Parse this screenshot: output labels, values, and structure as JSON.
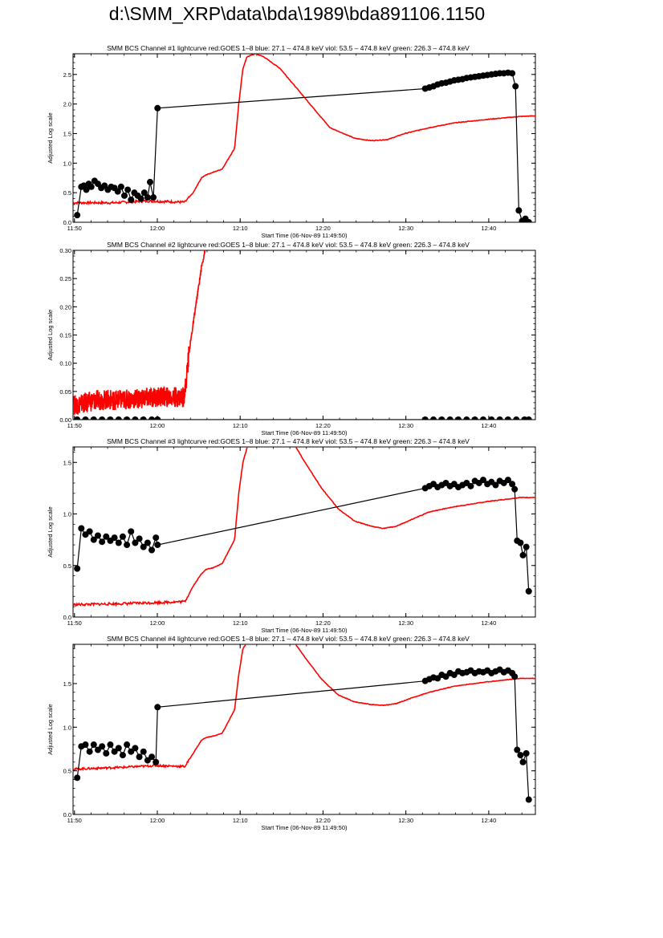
{
  "page": {
    "title": "d:\\SMM_XRP\\data\\bda\\1989\\bda891106.1150"
  },
  "colors": {
    "goes": "#ff0000",
    "bcs": "#000000",
    "axis": "#000000"
  },
  "chart_data": [
    {
      "type": "line",
      "title": "SMM BCS Channel #1 lightcurve  red:GOES 1–8  blue: 27.1 – 474.8 keV  viol: 53.5 – 474.8 keV  green: 226.3 – 474.8 keV",
      "xlabel": "Start Time (06-Nov-89 11:49:50)",
      "ylabel": "Adjusted Log scale",
      "x_unit": "minutes after 11:49:50",
      "xlim": [
        0,
        55.8
      ],
      "ylim": [
        0,
        2.85
      ],
      "x_ticks": [
        {
          "x": 0.17,
          "label": "11:50"
        },
        {
          "x": 10.17,
          "label": "12:00"
        },
        {
          "x": 20.17,
          "label": "12:10"
        },
        {
          "x": 30.17,
          "label": "12:20"
        },
        {
          "x": 40.17,
          "label": "12:30"
        },
        {
          "x": 50.17,
          "label": "12:40"
        }
      ],
      "y_ticks": [
        {
          "y": 0,
          "label": "0.0"
        },
        {
          "y": 0.5,
          "label": "0.5"
        },
        {
          "y": 1.0,
          "label": "1.0"
        },
        {
          "y": 1.5,
          "label": "1.5"
        },
        {
          "y": 2.0,
          "label": "2.0"
        },
        {
          "y": 2.5,
          "label": "2.5"
        }
      ],
      "series": [
        {
          "color": "#ff0000",
          "noise": 0.02,
          "x": [
            0,
            5,
            9,
            13.5,
            14.5,
            15.5,
            16,
            17,
            18,
            19.5,
            20,
            20.5,
            21,
            22,
            23,
            25,
            28,
            31,
            34,
            36,
            38,
            40,
            43,
            46,
            50,
            54,
            55.8
          ],
          "y": [
            0.33,
            0.33,
            0.36,
            0.34,
            0.5,
            0.75,
            0.8,
            0.85,
            0.9,
            1.25,
            2.0,
            2.6,
            2.8,
            2.85,
            2.8,
            2.6,
            2.1,
            1.6,
            1.42,
            1.38,
            1.4,
            1.5,
            1.6,
            1.68,
            1.74,
            1.79,
            1.8
          ]
        },
        {
          "color": "#000000",
          "markers": true,
          "x": [
            0.5,
            1.0,
            1.3,
            1.6,
            1.9,
            2.2,
            2.6,
            3.0,
            3.4,
            3.8,
            4.2,
            4.6,
            5.0,
            5.4,
            5.8,
            6.2,
            6.6,
            7.0,
            7.4,
            7.8,
            8.2,
            8.6,
            9.0,
            9.3,
            9.7,
            10.2,
            42.5,
            43,
            43.5,
            44,
            44.5,
            45,
            45.5,
            46,
            46.5,
            47,
            47.5,
            48,
            48.5,
            49,
            49.5,
            50,
            50.5,
            51,
            51.5,
            52,
            52.5,
            53,
            53.4,
            53.8,
            54.2,
            54.6,
            55.0
          ],
          "y": [
            0.12,
            0.6,
            0.62,
            0.55,
            0.65,
            0.6,
            0.7,
            0.65,
            0.58,
            0.62,
            0.55,
            0.6,
            0.58,
            0.52,
            0.6,
            0.45,
            0.55,
            0.38,
            0.5,
            0.45,
            0.4,
            0.5,
            0.42,
            0.68,
            0.42,
            1.93,
            2.26,
            2.28,
            2.3,
            2.33,
            2.35,
            2.36,
            2.38,
            2.4,
            2.41,
            2.42,
            2.44,
            2.45,
            2.46,
            2.47,
            2.48,
            2.49,
            2.5,
            2.51,
            2.52,
            2.52,
            2.53,
            2.52,
            2.3,
            0.2,
            0.02,
            0.06,
            0.0
          ]
        }
      ]
    },
    {
      "type": "line",
      "title": "SMM BCS Channel #2 lightcurve  red:GOES 1–8  blue: 27.1 – 474.8 keV  viol: 53.5 – 474.8 keV  green: 226.3 – 474.8 keV",
      "xlabel": "Start Time (06-Nov-89 11:49:50)",
      "ylabel": "Adjusted Log scale",
      "x_unit": "minutes after 11:49:50",
      "xlim": [
        0,
        55.8
      ],
      "ylim": [
        0,
        0.3
      ],
      "x_ticks": [
        {
          "x": 0.17,
          "label": "11:50"
        },
        {
          "x": 10.17,
          "label": "12:00"
        },
        {
          "x": 20.17,
          "label": "12:10"
        },
        {
          "x": 30.17,
          "label": "12:20"
        },
        {
          "x": 40.17,
          "label": "12:30"
        },
        {
          "x": 50.17,
          "label": "12:40"
        }
      ],
      "y_ticks": [
        {
          "y": 0,
          "label": "0.00"
        },
        {
          "y": 0.05,
          "label": "0.05"
        },
        {
          "y": 0.1,
          "label": "0.10"
        },
        {
          "y": 0.15,
          "label": "0.15"
        },
        {
          "y": 0.2,
          "label": "0.20"
        },
        {
          "y": 0.25,
          "label": "0.25"
        },
        {
          "y": 0.3,
          "label": "0.30"
        }
      ],
      "series": [
        {
          "color": "#ff0000",
          "noise": 0.018,
          "x": [
            0,
            3,
            6,
            10,
            13.3,
            13.6,
            14,
            14.5,
            15,
            15.5,
            16.2
          ],
          "y": [
            0.025,
            0.035,
            0.035,
            0.04,
            0.04,
            0.06,
            0.12,
            0.17,
            0.22,
            0.27,
            0.32
          ]
        },
        {
          "color": "#000000",
          "markers": true,
          "x": [
            0.5,
            1.5,
            2.5,
            3.5,
            4.5,
            5.5,
            6.5,
            7.5,
            8.5,
            9.5,
            10.2,
            42.5,
            43.5,
            44.5,
            45.5,
            46.5,
            47.5,
            48.5,
            49.5,
            50.5,
            51.5,
            52.5,
            53.5,
            54.5,
            55.0
          ],
          "y": [
            0,
            0,
            0,
            0,
            0,
            0,
            0,
            0,
            0,
            0,
            0,
            0,
            0,
            0,
            0,
            0,
            0,
            0,
            0,
            0,
            0,
            0,
            0,
            0,
            0
          ]
        }
      ]
    },
    {
      "type": "line",
      "title": "SMM BCS Channel #3 lightcurve  red:GOES 1–8  blue: 27.1 – 474.8 keV  viol: 53.5 – 474.8 keV  green: 226.3 – 474.8 keV",
      "xlabel": "Start Time (06-Nov-89 11:49:50)",
      "ylabel": "Adjusted Log scale",
      "x_unit": "minutes after 11:49:50",
      "xlim": [
        0,
        55.8
      ],
      "ylim": [
        0,
        1.65
      ],
      "x_ticks": [
        {
          "x": 0.17,
          "label": "11:50"
        },
        {
          "x": 10.17,
          "label": "12:00"
        },
        {
          "x": 20.17,
          "label": "12:10"
        },
        {
          "x": 30.17,
          "label": "12:20"
        },
        {
          "x": 40.17,
          "label": "12:30"
        },
        {
          "x": 50.17,
          "label": "12:40"
        }
      ],
      "y_ticks": [
        {
          "y": 0,
          "label": "0.0"
        },
        {
          "y": 0.5,
          "label": "0.5"
        },
        {
          "y": 1.0,
          "label": "1.0"
        },
        {
          "y": 1.5,
          "label": "1.5"
        }
      ],
      "series": [
        {
          "color": "#ff0000",
          "noise": 0.012,
          "x": [
            0,
            6,
            10,
            13.5,
            14.5,
            15.5,
            16,
            17,
            18,
            19.5,
            20,
            20.5,
            21.2,
            26.5,
            28,
            30,
            32,
            34,
            36,
            37.5,
            39,
            41,
            43,
            46,
            50,
            54,
            55.8
          ],
          "y": [
            0.12,
            0.13,
            0.14,
            0.15,
            0.3,
            0.42,
            0.46,
            0.48,
            0.52,
            0.75,
            1.2,
            1.5,
            1.7,
            1.7,
            1.5,
            1.25,
            1.05,
            0.93,
            0.88,
            0.86,
            0.88,
            0.95,
            1.02,
            1.07,
            1.12,
            1.16,
            1.16
          ]
        },
        {
          "color": "#000000",
          "markers": true,
          "x": [
            0.5,
            1.0,
            1.5,
            2.0,
            2.5,
            3.0,
            3.5,
            4.0,
            4.5,
            5.0,
            5.5,
            6.0,
            6.5,
            7.0,
            7.5,
            8.0,
            8.5,
            9.0,
            9.5,
            10.0,
            10.2,
            42.5,
            43,
            43.5,
            44,
            44.5,
            45,
            45.5,
            46,
            46.5,
            47,
            47.5,
            48,
            48.5,
            49,
            49.5,
            50,
            50.5,
            51,
            51.5,
            52,
            52.5,
            53,
            53.3,
            53.6,
            54.0,
            54.3,
            54.7,
            55.0
          ],
          "y": [
            0.47,
            0.86,
            0.8,
            0.83,
            0.75,
            0.79,
            0.73,
            0.78,
            0.74,
            0.77,
            0.72,
            0.78,
            0.7,
            0.83,
            0.72,
            0.76,
            0.68,
            0.72,
            0.65,
            0.77,
            0.7,
            1.25,
            1.27,
            1.29,
            1.26,
            1.28,
            1.3,
            1.27,
            1.29,
            1.26,
            1.28,
            1.3,
            1.27,
            1.32,
            1.3,
            1.33,
            1.29,
            1.31,
            1.28,
            1.32,
            1.3,
            1.33,
            1.29,
            1.24,
            0.74,
            0.72,
            0.6,
            0.68,
            0.25
          ]
        }
      ]
    },
    {
      "type": "line",
      "title": "SMM BCS Channel #4 lightcurve  red:GOES 1–8  blue: 27.1 – 474.8 keV  viol: 53.5 – 474.8 keV  green: 226.3 – 474.8 keV",
      "xlabel": "Start Time (06-Nov-89 11:49:50)",
      "ylabel": "Adjusted Log scale",
      "x_unit": "minutes after 11:49:50",
      "xlim": [
        0,
        55.8
      ],
      "ylim": [
        0,
        1.95
      ],
      "x_ticks": [
        {
          "x": 0.17,
          "label": "11:50"
        },
        {
          "x": 10.17,
          "label": "12:00"
        },
        {
          "x": 20.17,
          "label": "12:10"
        },
        {
          "x": 30.17,
          "label": "12:20"
        },
        {
          "x": 40.17,
          "label": "12:30"
        },
        {
          "x": 50.17,
          "label": "12:40"
        }
      ],
      "y_ticks": [
        {
          "y": 0,
          "label": "0.0"
        },
        {
          "y": 0.5,
          "label": "0.5"
        },
        {
          "y": 1.0,
          "label": "1.0"
        },
        {
          "y": 1.5,
          "label": "1.5"
        }
      ],
      "series": [
        {
          "color": "#ff0000",
          "noise": 0.012,
          "x": [
            0,
            6,
            10,
            13.5,
            14.5,
            15.5,
            16,
            17,
            18,
            19.5,
            20,
            20.5,
            21.2,
            26.5,
            28,
            30,
            32,
            34,
            36,
            37.5,
            39,
            41,
            43,
            46,
            50,
            54,
            55.8
          ],
          "y": [
            0.52,
            0.54,
            0.56,
            0.55,
            0.7,
            0.85,
            0.88,
            0.9,
            0.93,
            1.2,
            1.6,
            1.9,
            2.0,
            2.0,
            1.8,
            1.55,
            1.37,
            1.29,
            1.26,
            1.25,
            1.27,
            1.34,
            1.4,
            1.47,
            1.52,
            1.56,
            1.56
          ]
        },
        {
          "color": "#000000",
          "markers": true,
          "x": [
            0.5,
            1.0,
            1.5,
            2.0,
            2.5,
            3.0,
            3.5,
            4.0,
            4.5,
            5.0,
            5.5,
            6.0,
            6.5,
            7.0,
            7.5,
            8.0,
            8.5,
            9.0,
            9.5,
            10.0,
            10.2,
            42.5,
            43,
            43.5,
            44,
            44.5,
            45,
            45.5,
            46,
            46.5,
            47,
            47.5,
            48,
            48.5,
            49,
            49.5,
            50,
            50.5,
            51,
            51.5,
            52,
            52.5,
            53,
            53.3,
            53.6,
            54.0,
            54.3,
            54.7,
            55.0
          ],
          "y": [
            0.42,
            0.78,
            0.8,
            0.72,
            0.8,
            0.74,
            0.78,
            0.7,
            0.8,
            0.72,
            0.76,
            0.68,
            0.8,
            0.72,
            0.76,
            0.66,
            0.72,
            0.62,
            0.66,
            0.6,
            1.23,
            1.53,
            1.55,
            1.57,
            1.56,
            1.6,
            1.58,
            1.62,
            1.6,
            1.64,
            1.62,
            1.63,
            1.65,
            1.62,
            1.64,
            1.63,
            1.65,
            1.62,
            1.64,
            1.66,
            1.63,
            1.65,
            1.62,
            1.58,
            0.74,
            0.68,
            0.6,
            0.7,
            0.17
          ]
        }
      ]
    }
  ]
}
